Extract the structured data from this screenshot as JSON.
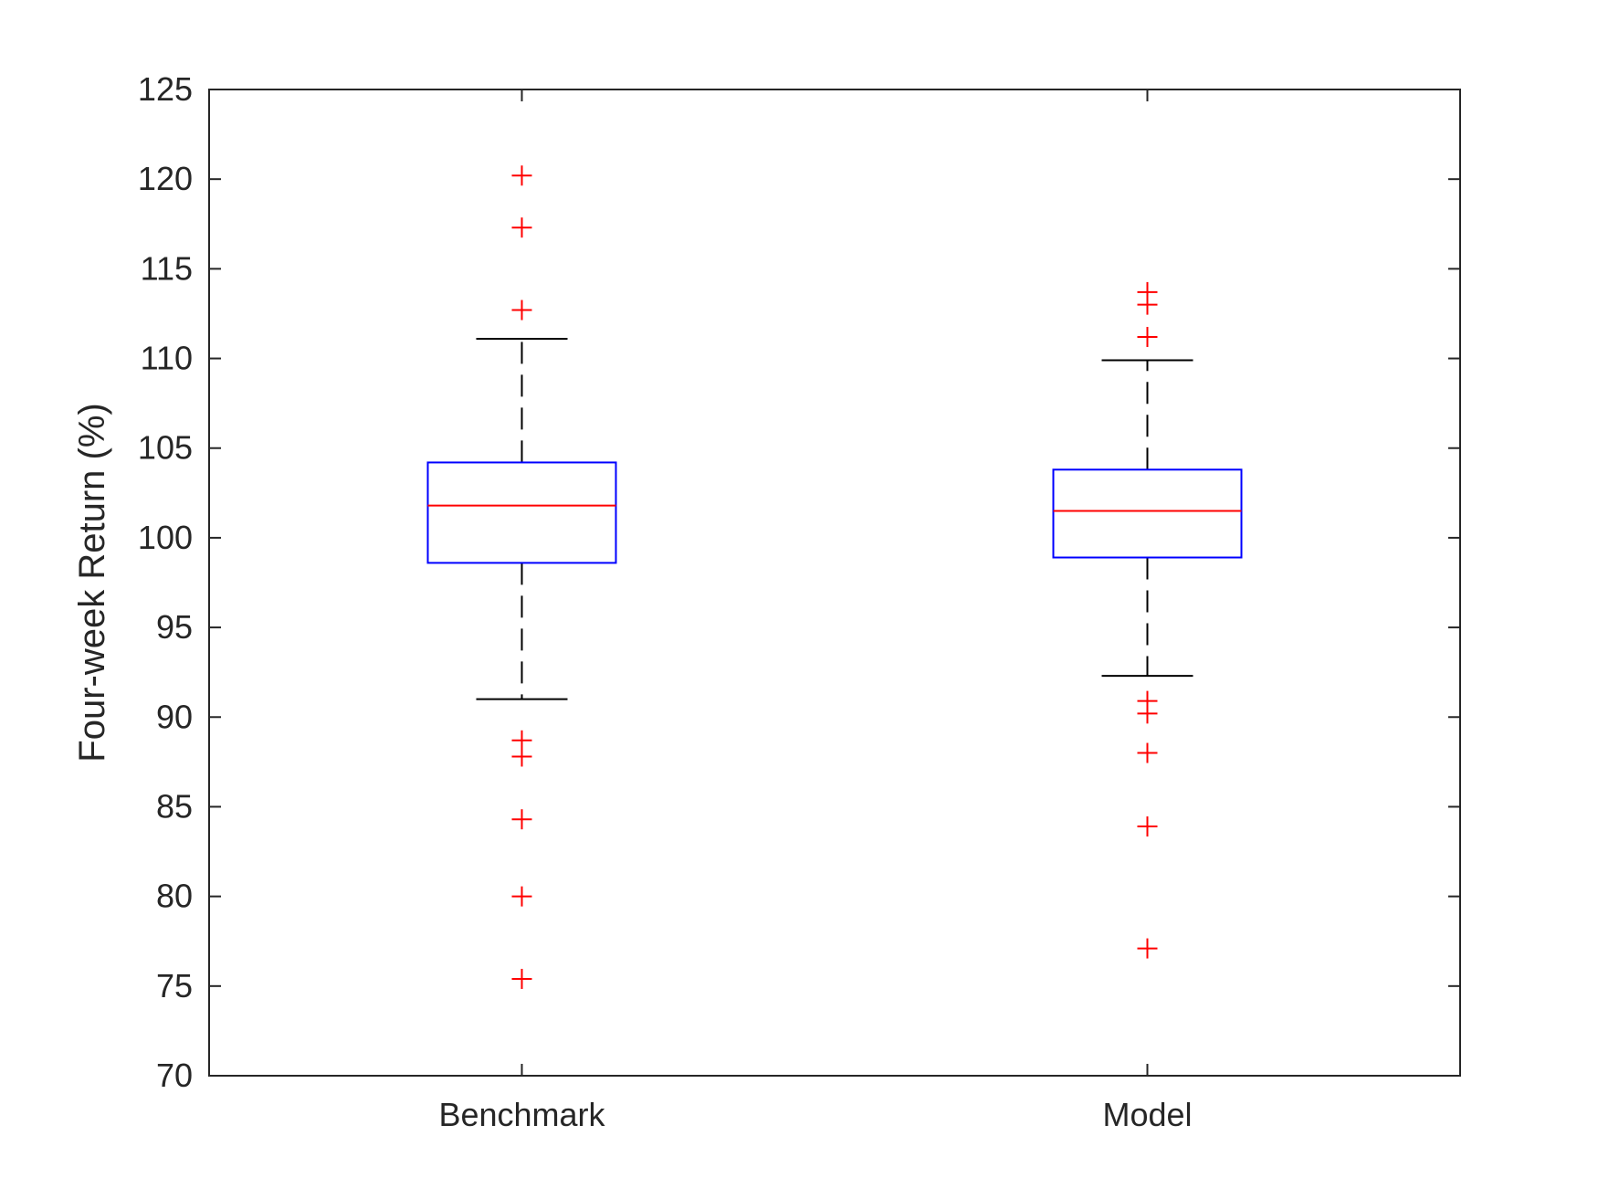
{
  "chart_data": {
    "type": "boxplot",
    "title": "",
    "xlabel": "",
    "ylabel": "Four-week Return (%)",
    "ylim": [
      70,
      125
    ],
    "yticks": [
      70,
      75,
      80,
      85,
      90,
      95,
      100,
      105,
      110,
      115,
      120,
      125
    ],
    "grid": false,
    "categories": [
      "Benchmark",
      "Model"
    ],
    "boxes": [
      {
        "category": "Benchmark",
        "whisker_low": 91.0,
        "q1": 98.6,
        "median": 101.8,
        "q3": 104.2,
        "whisker_high": 111.1,
        "outliers": [
          120.2,
          117.3,
          112.7,
          88.7,
          87.8,
          84.3,
          80.0,
          75.4
        ]
      },
      {
        "category": "Model",
        "whisker_low": 92.3,
        "q1": 98.9,
        "median": 101.5,
        "q3": 103.8,
        "whisker_high": 109.9,
        "outliers": [
          113.7,
          113.0,
          111.2,
          90.9,
          90.2,
          88.0,
          83.9,
          77.1
        ]
      }
    ],
    "colors": {
      "box": "#0000ff",
      "median": "#ff0000",
      "whisker": "#000000",
      "outlier": "#ff0000",
      "axis": "#262626"
    }
  }
}
